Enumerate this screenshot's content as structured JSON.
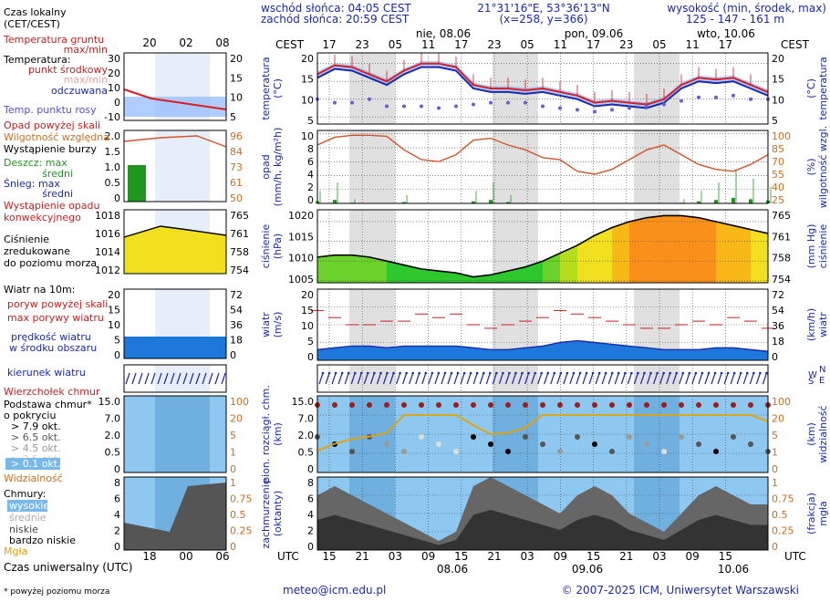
{
  "header": {
    "sunrise": "wschód słońca: 04:05 CEST",
    "sunset": "zachód słońca: 20:59 CEST",
    "coords": "21°31'16\"E, 53°36'13\"N",
    "grid": "(x=258, y=366)",
    "elevation_label": "wysokość (min, środek, max)",
    "elevation_values": "125 - 147 - 161 m"
  },
  "top_axis": {
    "tz_left": "CEST",
    "tz_right": "CEST",
    "hours": [
      "17",
      "23",
      "05",
      "11",
      "17",
      "23",
      "05",
      "11",
      "17",
      "23",
      "05",
      "11",
      "17"
    ],
    "dates": [
      "nie, 08.06",
      "pon, 09.06",
      "wto, 10.06"
    ]
  },
  "bottom_axis": {
    "tz_left": "UTC",
    "tz_right": "UTC",
    "hours": [
      "15",
      "21",
      "03",
      "09",
      "15",
      "21",
      "03",
      "09",
      "15",
      "21",
      "03",
      "09",
      "15"
    ],
    "dates": [
      "08.06",
      "09.06",
      "10.06"
    ]
  },
  "footer": {
    "email": "meteo@icm.edu.pl",
    "copyright": "© 2007-2025 ICM, Uniwersytet Warszawski",
    "note": "* powyżej poziomu morza"
  },
  "legend": {
    "local_time": "Czas lokalny",
    "local_time_tz": "(CET/CEST)",
    "local_ticks": [
      "20",
      "02",
      "08"
    ],
    "ground_temp": "Temperatura gruntu",
    "ground_temp_sub": "max/min",
    "temp_title": "Temperatura:",
    "temp_mid": "punkt środkowy",
    "temp_maxmin": "max/min",
    "temp_feels": "odczuwana",
    "temp_dew": "Temp. punktu rosy",
    "precip_above": "Opad powyżej skali",
    "humidity": "Wilgotność względna",
    "storm": "Wystąpienie burzy",
    "rain_max": "Deszcz: max",
    "rain_mid": "średni",
    "snow_max": "Śnieg:    max",
    "snow_mid": "średni",
    "conv": "Wystąpienie opadu",
    "conv2": "konwekcyjnego",
    "pressure1": "Ciśnienie",
    "pressure2": "zredukowane",
    "pressure3": "do poziomu morza",
    "wind_title": "Wiatr na 10m:",
    "gust_above": "poryw powyżej skali",
    "gust_max": "max porywy wiatru",
    "wind_avg1": "prędkość wiatru",
    "wind_avg2": "w środku obszaru",
    "wind_dir": "kierunek wiatru",
    "cloud_top": "Wierzchołek chmur",
    "cloud_base1": "Podstawa chmur*",
    "cloud_base2": "o pokryciu",
    "okt": [
      "> 7.9 okt.",
      "> 6.5 okt.",
      "> 4.5 okt.",
      "> 2.5 okt.",
      "> 0.1 okt."
    ],
    "visibility": "Widzialność",
    "clouds": "Chmury:",
    "cl_high": "wysokie",
    "cl_mid": "średnie",
    "cl_low": "niskie",
    "cl_vlow": "bardzo niskie",
    "fog": "Mgła",
    "utc_title": "Czas uniwersalny (UTC)",
    "utc_ticks": [
      "18",
      "00",
      "06"
    ]
  },
  "panels": {
    "temp": {
      "ylabel": "temperatura",
      "unit": "(°C)",
      "ticks": [
        "20",
        "15",
        "10",
        "5"
      ],
      "rticks": [
        "20",
        "15",
        "10",
        "5"
      ],
      "mini_ticks": [
        "30",
        "20",
        "10",
        "0",
        "-10"
      ]
    },
    "precip": {
      "ylabel": "opad",
      "unit": "(mm/h, kg/m²h)",
      "ticks": [
        "10",
        "8",
        "6",
        "4",
        "2",
        "0"
      ],
      "rlabel": "wilgotność wzgl.",
      "runit": "(%)",
      "rticks": [
        "100",
        "85",
        "70",
        "55",
        "40",
        "25"
      ],
      "mini_ticks": [
        "2.0",
        "1.5",
        "1.0",
        "0.5",
        "0"
      ],
      "mini_rticks": [
        "96",
        "84",
        "73",
        "61",
        "50"
      ]
    },
    "pressure": {
      "ylabel": "ciśnienie",
      "unit": "(hPa)",
      "ticks": [
        "1020",
        "1015",
        "1010",
        "1005"
      ],
      "rlabel": "ciśnienie",
      "runit": "(mm Hg)",
      "rticks": [
        "765",
        "761",
        "758",
        "754"
      ],
      "mini_ticks": [
        "1018",
        "1016",
        "1014",
        "1012"
      ]
    },
    "wind": {
      "ylabel": "wiatr",
      "unit": "(m/s)",
      "ticks": [
        "20",
        "15",
        "10",
        "5",
        "0"
      ],
      "rlabel": "wiatr",
      "runit": "(km/h)",
      "rticks": [
        "72",
        "54",
        "36",
        "18",
        "0"
      ],
      "mini_rticks": [
        "72",
        "54",
        "36",
        "18",
        "0"
      ]
    },
    "dir": {
      "n": "N",
      "w": "W",
      "s": "S",
      "e": "E"
    },
    "cloudbase": {
      "ylabel": "pion. rozciągł. chm.",
      "unit": "(km)",
      "ticks": [
        "15.0",
        "7.0",
        "2.0",
        "0.5",
        "0"
      ],
      "rlabel": "widzialność",
      "runit": "(km)",
      "rticks": [
        "100",
        "20",
        "5",
        "1",
        "0"
      ]
    },
    "cover": {
      "ylabel": "zachmurzenie",
      "unit": "(oktanty)",
      "ticks": [
        "8",
        "6",
        "4",
        "2",
        "0"
      ],
      "rlabel": "mgła",
      "runit": "(frakcja)",
      "rticks": [
        "1",
        "0.75",
        "0.5",
        "0.25",
        "0"
      ]
    }
  },
  "chart_data": {
    "type": "line",
    "x_hours_from_start": [
      0,
      3,
      6,
      9,
      12,
      15,
      18,
      21,
      24,
      27,
      30,
      33,
      36,
      39,
      42,
      45,
      48,
      51,
      54,
      57,
      60,
      63,
      66,
      69,
      72,
      75,
      78
    ],
    "temperature_mid": [
      17,
      19.5,
      19,
      17,
      15,
      18,
      20,
      20,
      19,
      14,
      13,
      13,
      12.5,
      13,
      12,
      11,
      9,
      9.5,
      9,
      8.5,
      10,
      14,
      16,
      15.5,
      16,
      14,
      12
    ],
    "dew_point": [
      10,
      9,
      9,
      10,
      8,
      8,
      8,
      7.5,
      8,
      8.5,
      9,
      9,
      9,
      8,
      7.5,
      7,
      6.5,
      7,
      7.5,
      8,
      8.5,
      9.5,
      10.5,
      10.5,
      11,
      10,
      10
    ],
    "relative_humidity": [
      85,
      93,
      95,
      95,
      94,
      80,
      70,
      68,
      75,
      90,
      92,
      85,
      80,
      72,
      70,
      58,
      55,
      60,
      70,
      80,
      85,
      75,
      65,
      60,
      58,
      65,
      75
    ],
    "pressure": [
      1011,
      1011.5,
      1011.5,
      1011,
      1010,
      1009,
      1008,
      1007.5,
      1007,
      1006,
      1006.5,
      1007.5,
      1008.5,
      1010,
      1012,
      1014,
      1016.5,
      1018.5,
      1020,
      1021,
      1021.5,
      1021.5,
      1021,
      1020,
      1019,
      1018,
      1017
    ],
    "wind_speed": [
      3,
      3.5,
      4,
      4,
      3.5,
      4,
      4,
      4,
      4,
      3.5,
      3,
      3,
      3.5,
      4,
      5,
      5.5,
      5,
      4.5,
      4,
      3.5,
      3,
      3,
      3,
      3.5,
      3.5,
      3,
      2.5
    ],
    "wind_gust": [
      14,
      12,
      10,
      10,
      11,
      11,
      13,
      12,
      13,
      10,
      9,
      10,
      11,
      12,
      14,
      13,
      12,
      11,
      10,
      9,
      9,
      10,
      11,
      10,
      12,
      11,
      9
    ],
    "visibility_km": [
      1.5,
      3,
      4,
      4.5,
      6,
      20,
      20,
      20,
      20,
      12,
      5,
      6,
      10,
      20,
      20,
      20,
      20,
      20,
      20,
      20,
      20,
      20,
      20,
      20,
      20,
      20,
      15
    ],
    "precipitation": [
      0.3,
      0.5,
      0.1,
      0,
      0,
      0.2,
      0,
      0,
      0,
      0.3,
      0.5,
      0.2,
      0,
      0,
      0,
      0,
      0,
      0,
      0,
      0,
      0,
      0.1,
      0.3,
      0.5,
      0.8,
      0.6,
      0.4
    ],
    "cloud_cover_okt": [
      6,
      7,
      6,
      5,
      4,
      3,
      2,
      1,
      2,
      7,
      8,
      7,
      6,
      5,
      4,
      6,
      7,
      6,
      4,
      3,
      2,
      4,
      6,
      7,
      6,
      5,
      5
    ]
  }
}
